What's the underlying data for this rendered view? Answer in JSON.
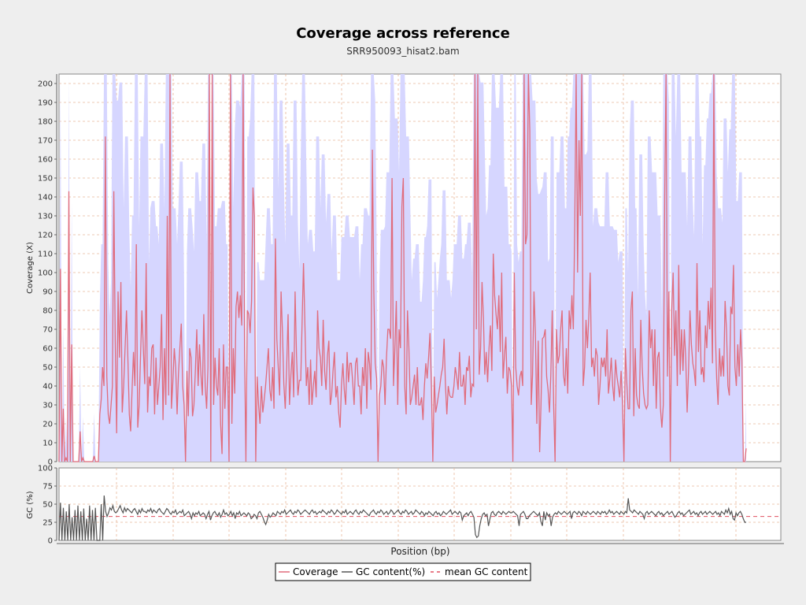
{
  "chart_data": {
    "type": "line",
    "title": "Coverage across reference",
    "subtitle": "SRR950093_hisat2.bam",
    "xlabel": "Position (bp)",
    "grid": true,
    "legend": {
      "placement": "bottom-center",
      "entries": [
        "Coverage",
        "GC content(%)",
        "mean GC content"
      ]
    },
    "colors": {
      "coverage": "#e06c7c",
      "coverage_band": "#d6d6ff",
      "gc": "#555555",
      "mean_gc": "#e05060",
      "grid": "#e8b89a"
    },
    "coverage_panel": {
      "ylabel": "Coverage (X)",
      "ylim": [
        0,
        205
      ],
      "yticks": [
        0,
        10,
        20,
        30,
        40,
        50,
        60,
        70,
        80,
        90,
        100,
        110,
        120,
        130,
        140,
        150,
        160,
        170,
        180,
        190,
        200
      ],
      "series": [
        {
          "name": "Coverage",
          "values": [
            0,
            102,
            0,
            28,
            0,
            2,
            0,
            143,
            0,
            62,
            0,
            0,
            0,
            0,
            0,
            16,
            0,
            2,
            0,
            0,
            0,
            0,
            0,
            0,
            0,
            3,
            0,
            0,
            0,
            25,
            33,
            50,
            40,
            172,
            45,
            25,
            20,
            30,
            40,
            143,
            64,
            15,
            90,
            55,
            95,
            26,
            40,
            60,
            80,
            54,
            25,
            16,
            38,
            58,
            40,
            115,
            18,
            30,
            55,
            80,
            60,
            41,
            105,
            26,
            45,
            40,
            60,
            62,
            25,
            55,
            30,
            40,
            50,
            78,
            22,
            60,
            30,
            130,
            35,
            210,
            28,
            42,
            60,
            50,
            25,
            46,
            60,
            73,
            40,
            30,
            0,
            48,
            24,
            60,
            55,
            24,
            30,
            48,
            70,
            40,
            62,
            46,
            35,
            78,
            40,
            28,
            50,
            210,
            0,
            210,
            30,
            55,
            40,
            35,
            60,
            20,
            4,
            62,
            28,
            50,
            50,
            0,
            210,
            20,
            60,
            36,
            82,
            90,
            76,
            88,
            72,
            210,
            60,
            0,
            80,
            78,
            68,
            85,
            145,
            130,
            0,
            45,
            30,
            20,
            40,
            26,
            33,
            40,
            50,
            60,
            38,
            32,
            50,
            28,
            118,
            65,
            50,
            35,
            90,
            68,
            41,
            28,
            50,
            78,
            30,
            46,
            58,
            34,
            90,
            56,
            35,
            43,
            43,
            75,
            105,
            72,
            40,
            50,
            30,
            54,
            30,
            40,
            48,
            34,
            80,
            60,
            55,
            40,
            75,
            48,
            38,
            56,
            64,
            30,
            35,
            48,
            58,
            34,
            40,
            26,
            18,
            40,
            52,
            38,
            30,
            58,
            42,
            52,
            52,
            42,
            30,
            52,
            55,
            40,
            40,
            25,
            50,
            40,
            60,
            28,
            58,
            52,
            38,
            165,
            90,
            52,
            44,
            0,
            35,
            40,
            54,
            50,
            30,
            55,
            70,
            70,
            65,
            150,
            40,
            60,
            85,
            30,
            70,
            60,
            135,
            150,
            40,
            25,
            80,
            60,
            30,
            34,
            40,
            46,
            30,
            50,
            30,
            30,
            34,
            22,
            40,
            52,
            44,
            55,
            68,
            40,
            0,
            45,
            26,
            30,
            35,
            40,
            46,
            50,
            65,
            40,
            25,
            40,
            35,
            34,
            34,
            40,
            50,
            45,
            38,
            58,
            40,
            40,
            46,
            30,
            50,
            48,
            56,
            34,
            41,
            40,
            210,
            70,
            210,
            46,
            60,
            95,
            76,
            46,
            58,
            42,
            60,
            72,
            48,
            110,
            88,
            78,
            70,
            88,
            58,
            100,
            44,
            56,
            66,
            36,
            50,
            48,
            40,
            0,
            100,
            50,
            40,
            35,
            45,
            48,
            40,
            210,
            115,
            120,
            210,
            175,
            30,
            46,
            90,
            68,
            20,
            64,
            5,
            30,
            65,
            66,
            70,
            45,
            38,
            26,
            46,
            80,
            30,
            0,
            70,
            52,
            56,
            70,
            80,
            46,
            40,
            60,
            36,
            80,
            70,
            88,
            70,
            125,
            210,
            100,
            170,
            130,
            210,
            40,
            50,
            75,
            60,
            76,
            100,
            50,
            55,
            45,
            60,
            56,
            30,
            40,
            55,
            50,
            55,
            45,
            70,
            36,
            44,
            55,
            40,
            32,
            54,
            45,
            40,
            34,
            48,
            30,
            0,
            60,
            42,
            28,
            28,
            80,
            90,
            24,
            60,
            35,
            30,
            28,
            75,
            50,
            36,
            30,
            28,
            30,
            80,
            60,
            70,
            40,
            70,
            28,
            55,
            58,
            28,
            18,
            30,
            140,
            210,
            45,
            90,
            0,
            80,
            100,
            56,
            80,
            40,
            104,
            46,
            70,
            48,
            70,
            55,
            26,
            48,
            80,
            62,
            52,
            48,
            40,
            105,
            58,
            80,
            46,
            50,
            42,
            72,
            60,
            85,
            70,
            92,
            52,
            210,
            70,
            44,
            30,
            60,
            45,
            56,
            45,
            85,
            70,
            40,
            35,
            82,
            78,
            104,
            50,
            40,
            62,
            45,
            70,
            54,
            0,
            0,
            7
          ]
        }
      ]
    },
    "gc_panel": {
      "ylabel": "GC (%)",
      "ylim": [
        0,
        100
      ],
      "yticks": [
        0,
        25,
        50,
        75,
        100
      ],
      "mean_gc": 33,
      "series": [
        {
          "name": "GC content(%)",
          "values": [
            0,
            52,
            0,
            45,
            0,
            40,
            0,
            50,
            0,
            32,
            0,
            42,
            0,
            48,
            0,
            40,
            0,
            44,
            0,
            30,
            0,
            48,
            0,
            42,
            0,
            45,
            0,
            0,
            0,
            50,
            0,
            62,
            40,
            33,
            38,
            45,
            42,
            48,
            40,
            38,
            40,
            44,
            48,
            42,
            38,
            45,
            40,
            44,
            42,
            40,
            38,
            42,
            44,
            40,
            36,
            42,
            38,
            44,
            40,
            40,
            38,
            42,
            40,
            44,
            38,
            42,
            40,
            38,
            42,
            44,
            40,
            38,
            36,
            40,
            44,
            42,
            38,
            36,
            40,
            38,
            42,
            36,
            38,
            40,
            38,
            42,
            34,
            36,
            38,
            40,
            36,
            30,
            38,
            34,
            38,
            36,
            40,
            34,
            36,
            38,
            36,
            30,
            36,
            40,
            28,
            34,
            38,
            40,
            36,
            34,
            38,
            32,
            36,
            42,
            36,
            38,
            34,
            36,
            40,
            34,
            38,
            30,
            38,
            36,
            40,
            34,
            36,
            38,
            36,
            34,
            38,
            36,
            30,
            32,
            36,
            34,
            30,
            38,
            40,
            36,
            32,
            26,
            22,
            28,
            36,
            32,
            34,
            38,
            36,
            34,
            40,
            38,
            36,
            40,
            38,
            42,
            36,
            38,
            40,
            42,
            38,
            36,
            40,
            38,
            42,
            40,
            36,
            38,
            40,
            42,
            40,
            38,
            36,
            40,
            42,
            38,
            40,
            36,
            38,
            40,
            38,
            42,
            40,
            38,
            36,
            40,
            38,
            42,
            40,
            36,
            38,
            42,
            40,
            38,
            36,
            40,
            38,
            42,
            36,
            38,
            40,
            38,
            36,
            40,
            42,
            38,
            36,
            40,
            38,
            42,
            40,
            38,
            36,
            34,
            38,
            40,
            42,
            38,
            36,
            40,
            38,
            42,
            40,
            36,
            38,
            40,
            36,
            38,
            42,
            40,
            36,
            38,
            40,
            42,
            38,
            36,
            40,
            38,
            42,
            40,
            36,
            38,
            40,
            36,
            38,
            42,
            40,
            38,
            36,
            40,
            38,
            34,
            38,
            36,
            40,
            38,
            36,
            34,
            38,
            40,
            36,
            38,
            34,
            36,
            40,
            38,
            36,
            38,
            40,
            42,
            36,
            38,
            40,
            38,
            36,
            40,
            38,
            28,
            34,
            36,
            38,
            34,
            38,
            40,
            36,
            32,
            8,
            4,
            6,
            20,
            30,
            36,
            38,
            34,
            36,
            20,
            30,
            38,
            40,
            36,
            34,
            38,
            40,
            38,
            36,
            40,
            38,
            36,
            38,
            40,
            38,
            38,
            40,
            38,
            36,
            34,
            20,
            36,
            38,
            40,
            36,
            30,
            30,
            34,
            36,
            38,
            40,
            38,
            36,
            34,
            38,
            26,
            20,
            40,
            28,
            38,
            34,
            36,
            20,
            32,
            36,
            38,
            36,
            40,
            38,
            36,
            38,
            40,
            38,
            36,
            38,
            40,
            30,
            38,
            40,
            38,
            36,
            40,
            38,
            34,
            40,
            38,
            36,
            40,
            38,
            36,
            38,
            40,
            38,
            36,
            40,
            38,
            36,
            40,
            38,
            40,
            36,
            38,
            42,
            38,
            40,
            36,
            38,
            40,
            38,
            36,
            40,
            38,
            36,
            40,
            38,
            58,
            42,
            40,
            38,
            42,
            40,
            38,
            36,
            40,
            38,
            36,
            30,
            38,
            40,
            36,
            38,
            40,
            38,
            36,
            34,
            38,
            40,
            36,
            38,
            34,
            36,
            38,
            40,
            36,
            38,
            40,
            36,
            32,
            34,
            38,
            40,
            36,
            38,
            34,
            36,
            38,
            40,
            42,
            36,
            38,
            40,
            36,
            38,
            34,
            38,
            40,
            36,
            38,
            40,
            36,
            38,
            40,
            38,
            36,
            38,
            40,
            36,
            38,
            34,
            40,
            38,
            36,
            42,
            38,
            44,
            36,
            40,
            30,
            28,
            38,
            34,
            38,
            40,
            36,
            30,
            25,
            25
          ]
        }
      ]
    }
  }
}
